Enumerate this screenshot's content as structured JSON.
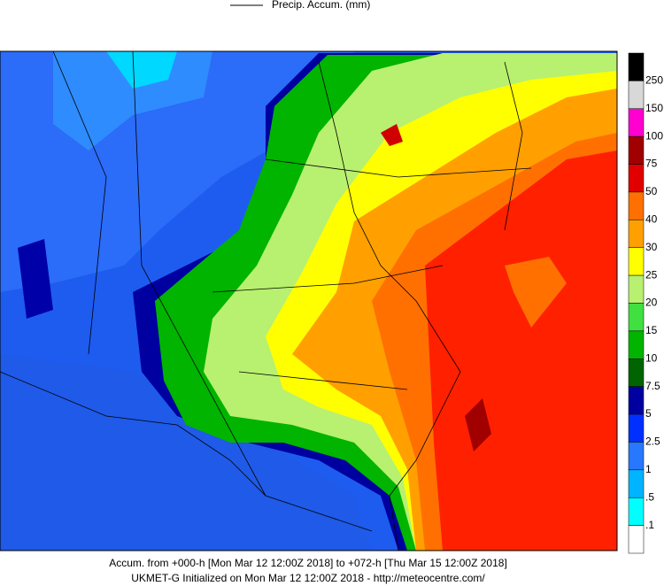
{
  "legend": {
    "title": "Precip. Accum. (mm)"
  },
  "colorbar": {
    "labels": [
      "250",
      "150",
      "100",
      "75",
      "50",
      "40",
      "30",
      "25",
      "20",
      "15",
      "10",
      "7.5",
      "5",
      "2.5",
      "1",
      ".5",
      ".1"
    ]
  },
  "footer": {
    "line1": "Accum. from +000-h [Mon Mar 12 12:00Z 2018] to +072-h [Thu Mar 15 12:00Z 2018]",
    "line2": "UKMET-G Initialized on Mon Mar 12 12:00Z 2018 - http://meteocentre.com/"
  }
}
